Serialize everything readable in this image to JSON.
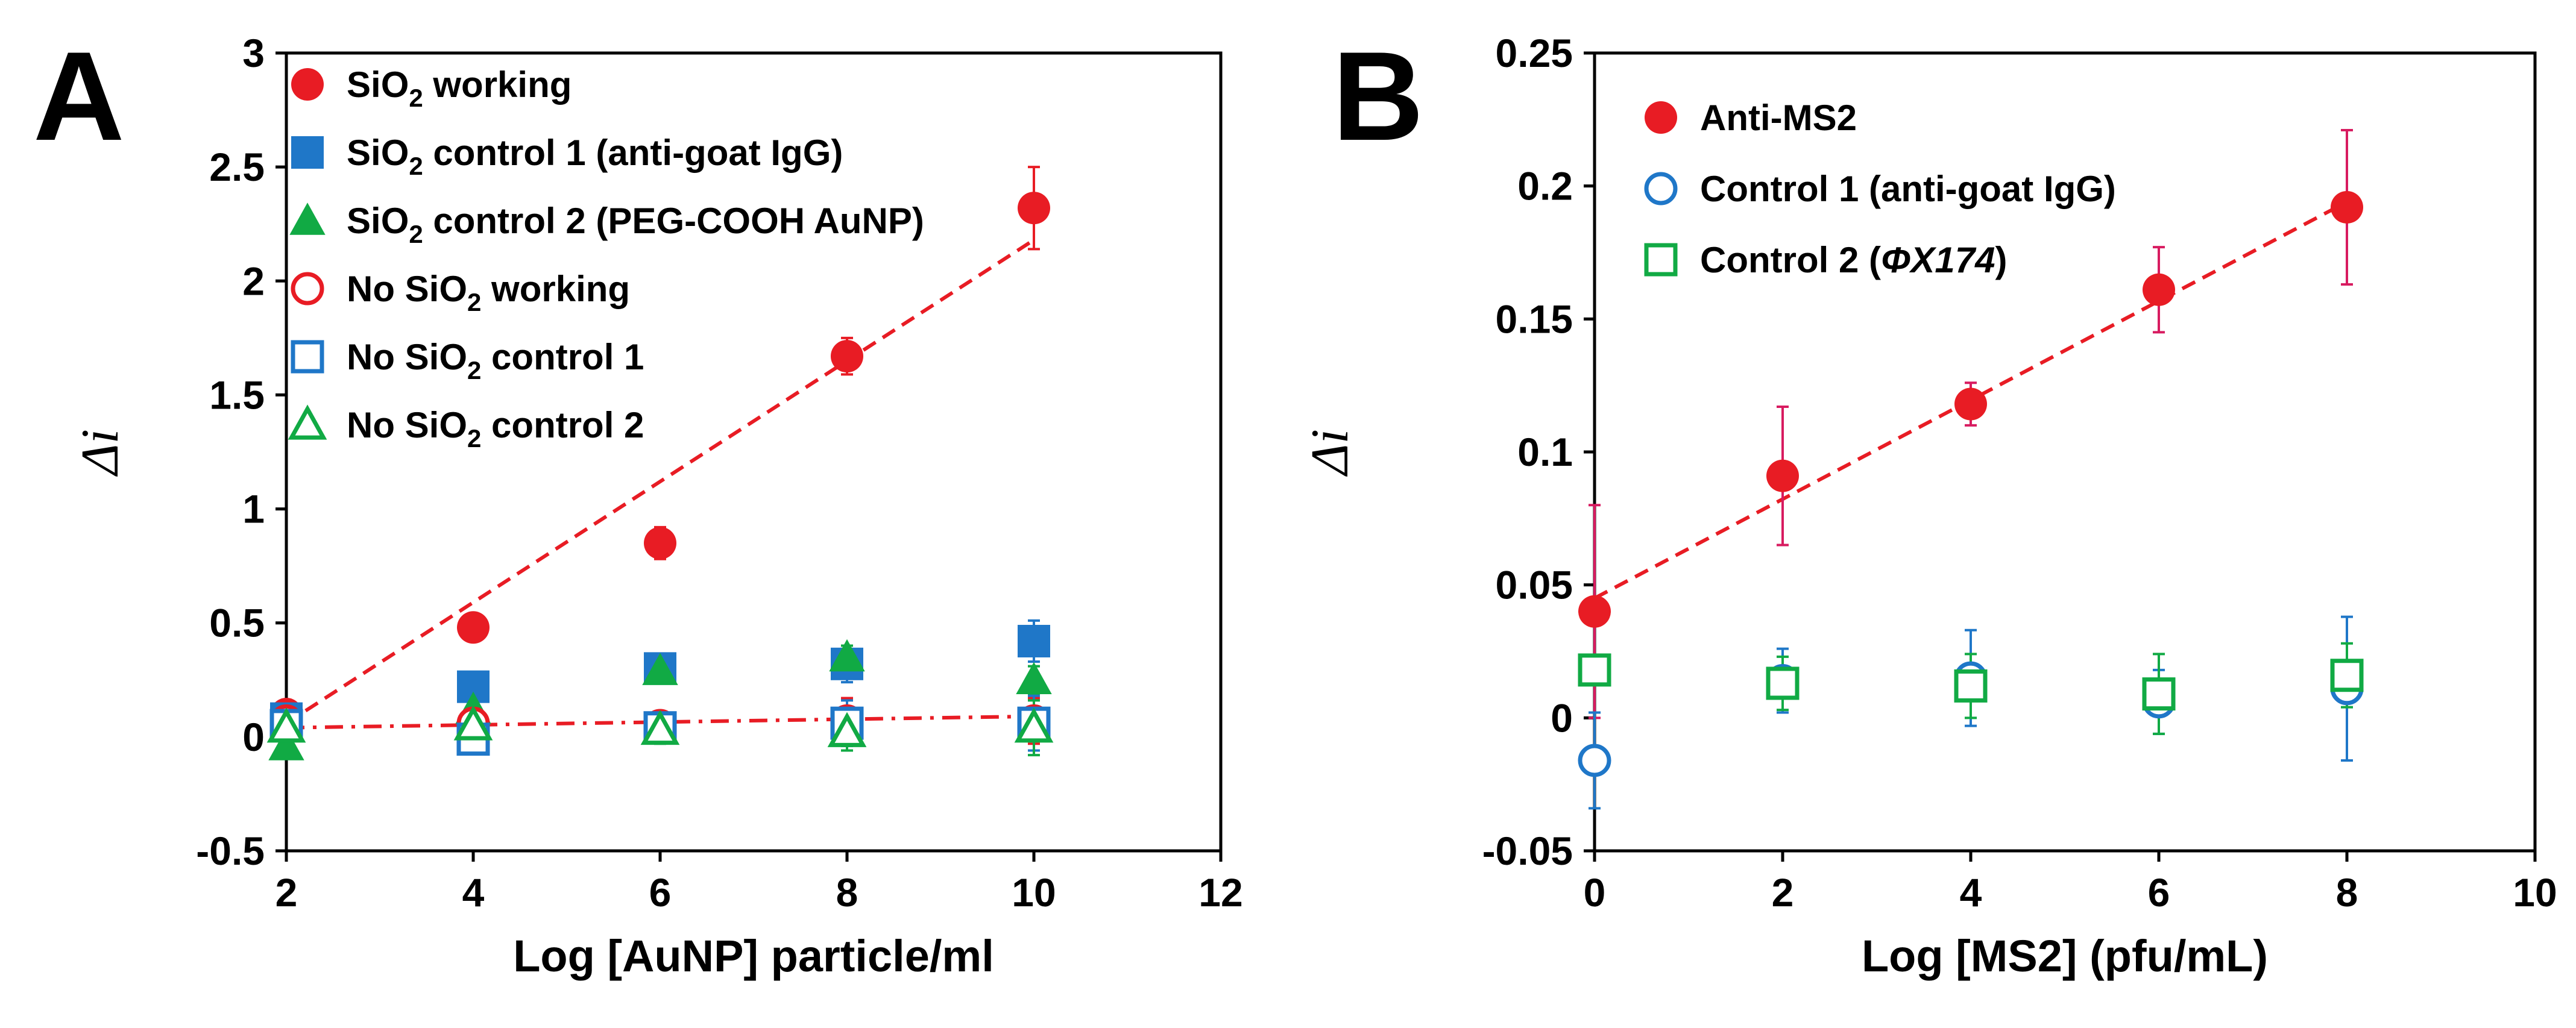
{
  "chart_data": [
    {
      "panel": "A",
      "type": "scatter",
      "xlabel": "Log [AuNP] particle/ml",
      "ylabel": "Δi",
      "xlim": [
        2,
        12
      ],
      "ylim": [
        -0.5,
        3
      ],
      "xticks": [
        2,
        4,
        6,
        8,
        10,
        12
      ],
      "yticks": [
        -0.5,
        0,
        0.5,
        1,
        1.5,
        2,
        2.5,
        3
      ],
      "ytick_labels": [
        "-0.5",
        "0",
        "0.5",
        "1",
        "1.5",
        "2",
        "2.5",
        "3"
      ],
      "legend": "top-left",
      "series": [
        {
          "name": "SiO2 working",
          "label_main": "SiO",
          "label_sub": "2",
          "label_rest": " working",
          "marker": "circle",
          "filled": true,
          "color": "#e81c24",
          "x": [
            2,
            4,
            6,
            8,
            10
          ],
          "y": [
            0.1,
            0.48,
            0.85,
            1.67,
            2.32
          ],
          "err": [
            0.02,
            0.03,
            0.07,
            0.08,
            0.18
          ]
        },
        {
          "name": "SiO2 control 1 (anti-goat IgG)",
          "label_main": "SiO",
          "label_sub": "2",
          "label_rest": " control 1 (anti-goat IgG)",
          "marker": "square",
          "filled": true,
          "color": "#1f77c8",
          "x": [
            2,
            4,
            6,
            8,
            10
          ],
          "y": [
            0.08,
            0.22,
            0.3,
            0.32,
            0.42
          ],
          "err": [
            0.03,
            0.03,
            0.04,
            0.08,
            0.09
          ]
        },
        {
          "name": "SiO2 control 2 (PEG-COOH AuNP)",
          "label_main": "SiO",
          "label_sub": "2",
          "label_rest": " control 2 (PEG-COOH AuNP)",
          "marker": "triangle",
          "filled": true,
          "color": "#11aa44",
          "x": [
            2,
            4,
            6,
            8,
            10
          ],
          "y": [
            -0.04,
            0.12,
            0.29,
            0.35,
            0.25
          ],
          "err": [
            0.03,
            0.04,
            0.04,
            0.05,
            0.06
          ]
        },
        {
          "name": "No SiO2 working",
          "label_main": "No SiO",
          "label_sub": "2",
          "label_rest": " working",
          "marker": "circle",
          "filled": false,
          "color": "#e81c24",
          "x": [
            2,
            4,
            6,
            8,
            10
          ],
          "y": [
            0.07,
            0.06,
            0.05,
            0.07,
            0.07
          ],
          "err": [
            0.03,
            0.04,
            0.06,
            0.1,
            0.1
          ]
        },
        {
          "name": "No SiO2 control 1",
          "label_main": "No SiO",
          "label_sub": "2",
          "label_rest": " control 1",
          "marker": "square",
          "filled": false,
          "color": "#1f77c8",
          "x": [
            2,
            4,
            6,
            8,
            10
          ],
          "y": [
            0.05,
            -0.01,
            0.04,
            0.06,
            0.06
          ],
          "err": [
            0.04,
            0.04,
            0.06,
            0.1,
            0.12
          ]
        },
        {
          "name": "No SiO2 control 2",
          "label_main": "No SiO",
          "label_sub": "2",
          "label_rest": " control 2",
          "marker": "triangle",
          "filled": false,
          "color": "#11aa44",
          "x": [
            2,
            4,
            6,
            8,
            10
          ],
          "y": [
            0.04,
            0.05,
            0.03,
            0.02,
            0.04
          ],
          "err": [
            0.03,
            0.04,
            0.06,
            0.08,
            0.12
          ]
        }
      ],
      "fit_lines": [
        {
          "x": [
            2,
            10
          ],
          "y": [
            0.06,
            2.18
          ],
          "color": "#e81c24",
          "style": "dashed"
        },
        {
          "x": [
            2,
            10
          ],
          "y": [
            0.04,
            0.09
          ],
          "color": "#e81c24",
          "style": "dashdot"
        }
      ]
    },
    {
      "panel": "B",
      "type": "scatter",
      "xlabel": "Log [MS2] (pfu/mL)",
      "ylabel": "Δi",
      "xlim": [
        0,
        10
      ],
      "ylim": [
        -0.05,
        0.25
      ],
      "xticks": [
        0,
        2,
        4,
        6,
        8,
        10
      ],
      "yticks": [
        -0.05,
        0,
        0.05,
        0.1,
        0.15,
        0.2,
        0.25
      ],
      "ytick_labels": [
        "-0.05",
        "0",
        "0.05",
        "0.1",
        "0.15",
        "0.2",
        "0.25"
      ],
      "legend": "top-left",
      "series": [
        {
          "name": "Anti-MS2",
          "label_main": "Anti-MS2",
          "label_sub": "",
          "label_rest": "",
          "marker": "circle",
          "filled": true,
          "color": "#e81c24",
          "errcolor": "#d81b60",
          "x": [
            0,
            2,
            4,
            6,
            8
          ],
          "y": [
            0.04,
            0.091,
            0.118,
            0.161,
            0.192
          ],
          "err": [
            0.04,
            0.026,
            0.008,
            0.016,
            0.029
          ]
        },
        {
          "name": "Control 1 (anti-goat IgG)",
          "label_main": "Control 1 (anti-goat IgG)",
          "label_sub": "",
          "label_rest": "",
          "marker": "circle",
          "filled": false,
          "color": "#1f77c8",
          "x": [
            0,
            2,
            4,
            6,
            8
          ],
          "y": [
            -0.016,
            0.014,
            0.015,
            0.006,
            0.011
          ],
          "err": [
            0.018,
            0.012,
            0.018,
            0.012,
            0.027
          ]
        },
        {
          "name": "Control 2 (ΦX174)",
          "label_main": "Control 2 (",
          "label_italic": "ΦX174",
          "label_tail": ")",
          "label_sub": "",
          "label_rest": "",
          "marker": "square",
          "filled": false,
          "color": "#11aa44",
          "x": [
            0,
            2,
            4,
            6,
            8
          ],
          "y": [
            0.018,
            0.013,
            0.012,
            0.009,
            0.016
          ],
          "err": [
            0.005,
            0.01,
            0.012,
            0.015,
            0.012
          ]
        }
      ],
      "fit_lines": [
        {
          "x": [
            0,
            8
          ],
          "y": [
            0.045,
            0.194
          ],
          "color": "#e81c24",
          "style": "dashed"
        }
      ]
    }
  ]
}
